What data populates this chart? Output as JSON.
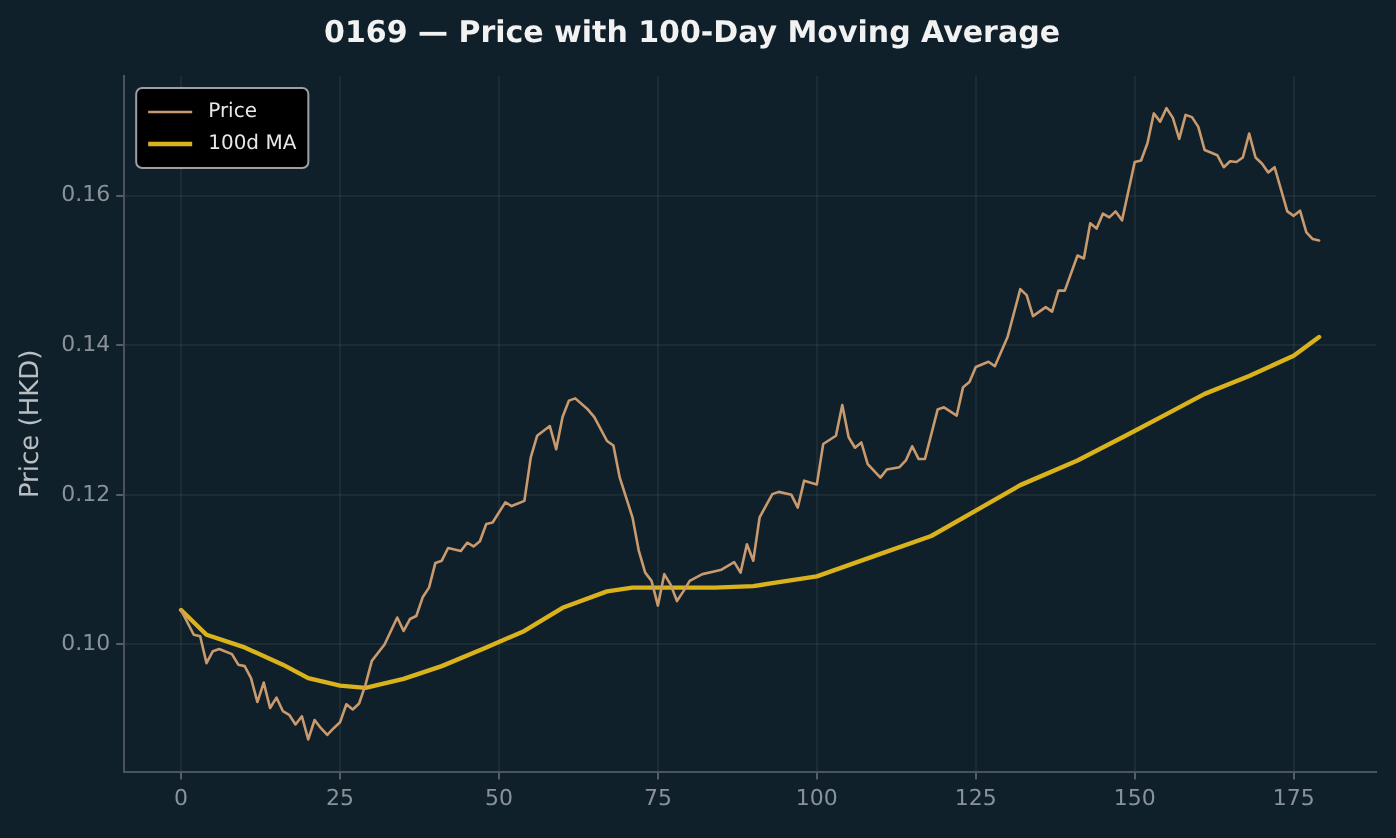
{
  "chart_data": {
    "type": "line",
    "title": "0169 — Price with 100-Day Moving Average",
    "ylabel": "Price (HKD)",
    "xlim": [
      -8.95,
      187.95
    ],
    "xticks": [
      0,
      25,
      50,
      75,
      100,
      125,
      150,
      175
    ],
    "ylim": [
      0.083,
      0.176
    ],
    "yticks": [
      {
        "value": 0.1,
        "label": "0.10"
      },
      {
        "value": 0.12,
        "label": "0.12"
      },
      {
        "value": 0.14,
        "label": "0.14"
      },
      {
        "value": 0.16,
        "label": "0.16"
      }
    ],
    "grid": true,
    "legend": "top left",
    "marker": "none",
    "line_style": "solid",
    "series": [
      {
        "name": "Price",
        "color": "#c99a6e",
        "x": [
          0,
          2,
          3,
          4,
          5,
          6,
          8,
          9,
          10,
          11,
          12,
          13,
          14,
          15,
          16,
          17,
          18,
          19,
          20,
          21,
          22,
          23,
          24,
          25,
          26,
          27,
          28,
          29,
          30,
          32,
          34,
          35,
          36,
          37,
          38,
          39,
          40,
          41,
          42,
          44,
          45,
          46,
          47,
          48,
          49,
          51,
          52,
          54,
          55,
          56,
          58,
          59,
          60,
          61,
          62,
          64,
          65,
          67,
          68,
          69,
          71,
          72,
          73,
          74,
          75,
          76,
          77,
          78,
          79,
          80,
          82,
          84,
          85,
          87,
          88,
          89,
          90,
          91,
          93,
          94,
          96,
          97,
          98,
          100,
          101,
          103,
          104,
          105,
          106,
          107,
          108,
          110,
          111,
          113,
          114,
          115,
          116,
          117,
          119,
          120,
          122,
          123,
          124,
          125,
          127,
          128,
          130,
          132,
          133,
          134,
          136,
          137,
          138,
          139,
          141,
          142,
          143,
          144,
          145,
          146,
          147,
          148,
          150,
          151,
          152,
          153,
          154,
          155,
          156,
          157,
          158,
          159,
          160,
          161,
          163,
          164,
          165,
          166,
          167,
          168,
          169,
          170,
          171,
          172,
          174,
          175,
          176,
          177,
          178,
          179
        ],
        "values": [
          0.1046,
          0.1013,
          0.1011,
          0.0975,
          0.0991,
          0.0994,
          0.0987,
          0.0973,
          0.0971,
          0.0955,
          0.0923,
          0.0949,
          0.0915,
          0.0929,
          0.0911,
          0.0906,
          0.0893,
          0.0904,
          0.0873,
          0.0899,
          0.0888,
          0.0879,
          0.0888,
          0.0896,
          0.092,
          0.0913,
          0.0921,
          0.0946,
          0.0978,
          0.1,
          0.1036,
          0.1018,
          0.1034,
          0.1038,
          0.1063,
          0.1076,
          0.1109,
          0.1112,
          0.1129,
          0.1125,
          0.1136,
          0.1131,
          0.1138,
          0.1161,
          0.1163,
          0.119,
          0.1185,
          0.1192,
          0.125,
          0.1279,
          0.1292,
          0.1261,
          0.1304,
          0.1326,
          0.1329,
          0.1314,
          0.1304,
          0.1272,
          0.1266,
          0.1223,
          0.117,
          0.1125,
          0.1096,
          0.1085,
          0.1052,
          0.1094,
          0.108,
          0.1058,
          0.1071,
          0.1085,
          0.1094,
          0.1098,
          0.11,
          0.111,
          0.1096,
          0.1134,
          0.1112,
          0.117,
          0.1201,
          0.1204,
          0.12,
          0.1183,
          0.1219,
          0.1214,
          0.1268,
          0.1279,
          0.132,
          0.1277,
          0.1263,
          0.127,
          0.1241,
          0.1223,
          0.1234,
          0.1237,
          0.1246,
          0.1265,
          0.1248,
          0.1248,
          0.1314,
          0.1317,
          0.1306,
          0.1344,
          0.1351,
          0.1371,
          0.1378,
          0.1372,
          0.1411,
          0.1475,
          0.1467,
          0.1439,
          0.1451,
          0.1445,
          0.1473,
          0.1473,
          0.152,
          0.1516,
          0.1563,
          0.1556,
          0.1576,
          0.1571,
          0.1579,
          0.1567,
          0.1645,
          0.1647,
          0.167,
          0.171,
          0.1699,
          0.1717,
          0.1704,
          0.1676,
          0.1708,
          0.1705,
          0.1692,
          0.1661,
          0.1654,
          0.1638,
          0.1646,
          0.1645,
          0.1651,
          0.1683,
          0.1651,
          0.1643,
          0.1631,
          0.1638,
          0.1579,
          0.1573,
          0.158,
          0.1551,
          0.1542,
          0.154
        ]
      },
      {
        "name": "100d MA",
        "color": "#d9b21c",
        "x": [
          0,
          4,
          10,
          16,
          20,
          25,
          29,
          35,
          41,
          48,
          54,
          60,
          67,
          71,
          76,
          84,
          90,
          93,
          100,
          103,
          110,
          118,
          125,
          132,
          141,
          149,
          155,
          161,
          168,
          175,
          179
        ],
        "values": [
          0.1046,
          0.1013,
          0.0996,
          0.0973,
          0.0955,
          0.0945,
          0.0942,
          0.0954,
          0.0971,
          0.0996,
          0.1018,
          0.1049,
          0.1071,
          0.1076,
          0.1076,
          0.1076,
          0.1078,
          0.1082,
          0.1091,
          0.11,
          0.1121,
          0.1145,
          0.1179,
          0.1213,
          0.1246,
          0.1281,
          0.1308,
          0.1335,
          0.1359,
          0.1386,
          0.1411
        ]
      }
    ]
  }
}
